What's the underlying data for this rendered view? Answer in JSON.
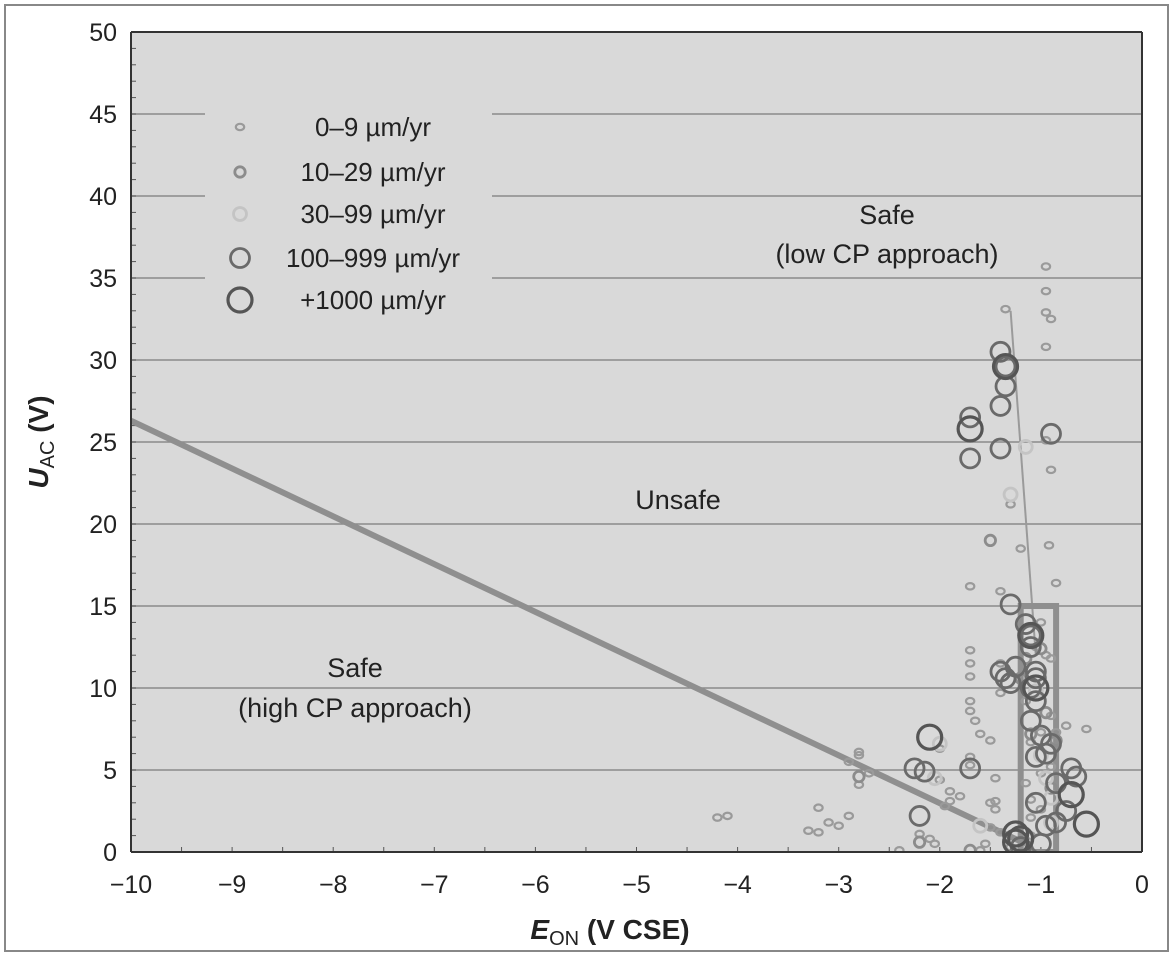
{
  "chart_data": {
    "type": "scatter",
    "title": "",
    "xlabel_main": "E",
    "xlabel_sub": "ON",
    "xlabel_rest": " (V CSE)",
    "ylabel_main": "U",
    "ylabel_sub": "AC",
    "ylabel_rest": " (V)",
    "xlim": [
      -10,
      0
    ],
    "ylim": [
      0,
      50
    ],
    "x_ticks": [
      -10,
      -9,
      -8,
      -7,
      -6,
      -5,
      -4,
      -3,
      -2,
      -1,
      0
    ],
    "x_tick_labels": [
      "−10",
      "−9",
      "−8",
      "−7",
      "−6",
      "−5",
      "−4",
      "−3",
      "−2",
      "−1",
      "0"
    ],
    "y_ticks": [
      0,
      5,
      10,
      15,
      20,
      25,
      30,
      35,
      40,
      45,
      50
    ],
    "y_tick_labels": [
      "0",
      "5",
      "10",
      "15",
      "20",
      "25",
      "30",
      "35",
      "40",
      "45",
      "50"
    ],
    "grid": "horizontal",
    "legend_position": "top-left",
    "legend": [
      {
        "label": "0–9 µm/yr",
        "size": 1,
        "color": "#9a9a9a"
      },
      {
        "label": "10–29 µm/yr",
        "size": 2,
        "color": "#8c8c8c"
      },
      {
        "label": "30–99 µm/yr",
        "size": 3,
        "color": "#c4c4c4"
      },
      {
        "label": "100–999 µm/yr",
        "size": 4,
        "color": "#6a6a6a"
      },
      {
        "label": "+1000 µm/yr",
        "size": 5,
        "color": "#555555"
      }
    ],
    "annotations": {
      "safe_low_line1": "Safe",
      "safe_low_line2": "(low CP approach)",
      "unsafe": "Unsafe",
      "safe_high_line1": "Safe",
      "safe_high_line2": "(high CP approach)"
    },
    "boundary_lines": [
      {
        "name": "high-cp-boundary",
        "x": [
          -10,
          -1.15
        ],
        "y": [
          26.3,
          0.5
        ],
        "color": "#8f8f8f",
        "weight": "thick"
      },
      {
        "name": "low-cp-boundary",
        "x": [
          -1.3,
          -1.05
        ],
        "y": [
          33,
          12
        ],
        "color": "#9a9a9a",
        "weight": "thin"
      },
      {
        "name": "safe-box",
        "x": [
          -1.2,
          -1.2,
          -0.85,
          -0.85,
          -1.2
        ],
        "y": [
          0,
          15,
          15,
          0,
          0
        ],
        "color": "#8f8f8f",
        "weight": "thick"
      }
    ],
    "series": [
      {
        "name": "0–9 µm/yr",
        "size": 1,
        "points": [
          [
            -4.1,
            2.2
          ],
          [
            -4.2,
            2.1
          ],
          [
            -3.2,
            2.7
          ],
          [
            -3.3,
            1.3
          ],
          [
            -3.2,
            1.2
          ],
          [
            -3.1,
            1.8
          ],
          [
            -3.0,
            1.6
          ],
          [
            -2.9,
            2.2
          ],
          [
            -2.9,
            5.5
          ],
          [
            -2.8,
            6.1
          ],
          [
            -2.8,
            5.9
          ],
          [
            -2.8,
            4.1
          ],
          [
            -2.7,
            4.8
          ],
          [
            -2.4,
            0.1
          ],
          [
            -2.2,
            1.1
          ],
          [
            -2.1,
            0.8
          ],
          [
            -2.05,
            0.5
          ],
          [
            -2.0,
            6.3
          ],
          [
            -2.0,
            4.4
          ],
          [
            -1.95,
            2.8
          ],
          [
            -1.9,
            3.7
          ],
          [
            -1.9,
            3.1
          ],
          [
            -1.8,
            3.4
          ],
          [
            -1.7,
            16.2
          ],
          [
            -1.7,
            12.3
          ],
          [
            -1.7,
            11.5
          ],
          [
            -1.7,
            10.7
          ],
          [
            -1.7,
            9.2
          ],
          [
            -1.7,
            8.6
          ],
          [
            -1.65,
            8.0
          ],
          [
            -1.6,
            7.2
          ],
          [
            -1.7,
            5.8
          ],
          [
            -1.7,
            5.3
          ],
          [
            -1.6,
            0.1
          ],
          [
            -1.55,
            0.5
          ],
          [
            -1.5,
            1.5
          ],
          [
            -1.5,
            3.0
          ],
          [
            -1.45,
            2.6
          ],
          [
            -1.45,
            3.1
          ],
          [
            -1.5,
            6.8
          ],
          [
            -1.4,
            15.9
          ],
          [
            -1.4,
            11.5
          ],
          [
            -1.4,
            9.7
          ],
          [
            -1.45,
            4.5
          ],
          [
            -1.4,
            1.2
          ],
          [
            -1.35,
            33.1
          ],
          [
            -1.3,
            21.2
          ],
          [
            -1.3,
            0.3
          ],
          [
            -1.2,
            18.5
          ],
          [
            -1.15,
            9.2
          ],
          [
            -1.15,
            4.2
          ],
          [
            -1.1,
            6.7
          ],
          [
            -1.1,
            3.2
          ],
          [
            -1.1,
            2.1
          ],
          [
            -1.1,
            1.0
          ],
          [
            -1.05,
            12.5
          ],
          [
            -1.0,
            14.0
          ],
          [
            -1.0,
            7.3
          ],
          [
            -1.0,
            4.8
          ],
          [
            -1.0,
            2.6
          ],
          [
            -0.95,
            35.7
          ],
          [
            -0.95,
            34.2
          ],
          [
            -0.95,
            32.9
          ],
          [
            -0.95,
            30.8
          ],
          [
            -0.95,
            25.1
          ],
          [
            -0.92,
            18.7
          ],
          [
            -0.95,
            12.0
          ],
          [
            -0.9,
            11.8
          ],
          [
            -0.9,
            23.3
          ],
          [
            -0.9,
            32.5
          ],
          [
            -0.9,
            8.3
          ],
          [
            -0.9,
            5.2
          ],
          [
            -0.85,
            7.3
          ],
          [
            -0.85,
            16.4
          ],
          [
            -0.75,
            7.7
          ],
          [
            -0.55,
            7.5
          ]
        ]
      },
      {
        "name": "10–29 µm/yr",
        "size": 2,
        "points": [
          [
            -2.8,
            4.6
          ],
          [
            -2.2,
            0.6
          ],
          [
            -1.7,
            0.1
          ],
          [
            -1.5,
            19.0
          ],
          [
            -1.2,
            10.6
          ],
          [
            -1.15,
            11.8
          ],
          [
            -1.1,
            7.2
          ],
          [
            -1.0,
            12.4
          ],
          [
            -0.95,
            8.5
          ],
          [
            -0.85,
            6.8
          ],
          [
            -0.9,
            3.9
          ]
        ]
      },
      {
        "name": "30–99 µm/yr",
        "size": 3,
        "points": [
          [
            -2.0,
            6.6
          ],
          [
            -2.05,
            4.5
          ],
          [
            -1.6,
            1.6
          ],
          [
            -1.3,
            21.8
          ],
          [
            -1.15,
            24.7
          ],
          [
            -1.05,
            9.8
          ],
          [
            -1.0,
            5.9
          ],
          [
            -0.95,
            4.5
          ],
          [
            -0.9,
            3.3
          ],
          [
            -0.9,
            1.8
          ]
        ]
      },
      {
        "name": "100–999 µm/yr",
        "size": 4,
        "points": [
          [
            -2.25,
            5.1
          ],
          [
            -2.15,
            4.9
          ],
          [
            -2.2,
            2.2
          ],
          [
            -1.7,
            26.5
          ],
          [
            -1.7,
            24.0
          ],
          [
            -1.7,
            5.1
          ],
          [
            -1.4,
            30.5
          ],
          [
            -1.4,
            27.2
          ],
          [
            -1.4,
            24.6
          ],
          [
            -1.35,
            29.6
          ],
          [
            -1.35,
            28.4
          ],
          [
            -1.3,
            15.1
          ],
          [
            -1.4,
            11.0
          ],
          [
            -1.35,
            10.6
          ],
          [
            -1.3,
            10.3
          ],
          [
            -1.25,
            11.3
          ],
          [
            -1.15,
            13.9
          ],
          [
            -1.1,
            13.2
          ],
          [
            -1.1,
            12.5
          ],
          [
            -1.05,
            11.0
          ],
          [
            -1.05,
            10.6
          ],
          [
            -1.1,
            10.0
          ],
          [
            -1.05,
            9.2
          ],
          [
            -1.1,
            8.0
          ],
          [
            -1.0,
            7.1
          ],
          [
            -0.9,
            6.6
          ],
          [
            -0.95,
            6.0
          ],
          [
            -1.05,
            5.8
          ],
          [
            -0.9,
            25.5
          ],
          [
            -0.7,
            5.1
          ],
          [
            -0.65,
            4.6
          ],
          [
            -0.85,
            4.2
          ],
          [
            -1.05,
            3.0
          ],
          [
            -0.75,
            2.5
          ],
          [
            -0.85,
            1.8
          ],
          [
            -0.95,
            1.6
          ],
          [
            -1.0,
            0.5
          ],
          [
            -1.2,
            0.3
          ]
        ]
      },
      {
        "name": "+1000 µm/yr",
        "size": 5,
        "points": [
          [
            -2.1,
            7.0
          ],
          [
            -1.7,
            25.8
          ],
          [
            -1.35,
            29.6
          ],
          [
            -1.1,
            13.2
          ],
          [
            -1.05,
            10.0
          ],
          [
            -0.7,
            3.5
          ],
          [
            -0.55,
            1.7
          ],
          [
            -1.25,
            1.1
          ],
          [
            -1.25,
            0.6
          ],
          [
            -1.2,
            0.8
          ]
        ]
      }
    ]
  }
}
